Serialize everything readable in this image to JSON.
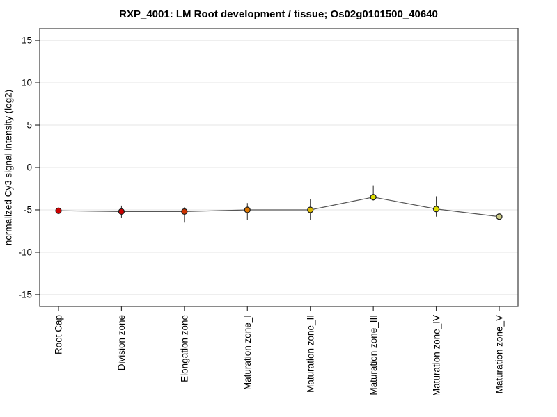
{
  "chart_data": {
    "type": "line",
    "title": "RXP_4001: LM Root development / tissue; Os02g0101500_40640",
    "ylabel": "normalized Cy3 signal intensity (log2)",
    "xlabel": "",
    "ylim": [
      -16.4,
      16.4
    ],
    "yticks": [
      15,
      10,
      5,
      0,
      -5,
      -10,
      -15
    ],
    "grid": true,
    "legend": "none",
    "categories": [
      "Root Cap",
      "Division zone",
      "Elongation zone",
      "Maturation zone_I",
      "Maturation zone_II",
      "Maturation zone_III",
      "Maturation zone_IV",
      "Maturation zone_V"
    ],
    "series": [
      {
        "name": "normalized Cy3 signal intensity (log2)",
        "values": [
          -5.1,
          -5.2,
          -5.2,
          -5.0,
          -5.0,
          -3.5,
          -4.9,
          -5.8
        ],
        "error_hi": [
          -4.8,
          -4.5,
          -4.7,
          -4.2,
          -3.7,
          -2.1,
          -3.4,
          -5.7
        ],
        "error_lo": [
          -5.5,
          -5.9,
          -6.5,
          -6.2,
          -6.2,
          -3.9,
          -5.8,
          -5.9
        ],
        "marker_colors": [
          "#cc0000",
          "#cc0000",
          "#cc3300",
          "#dd7700",
          "#ddbb00",
          "#dddd00",
          "#dddd00",
          "#cccc88"
        ]
      }
    ],
    "colors": {
      "line": "#555555",
      "error_bar": "#3a3a3a",
      "marker_outline": "#1a1a1a",
      "grid": "#e4e4e4",
      "border": "#4a4a4a",
      "tick": "#333333",
      "background": "#ffffff"
    }
  }
}
